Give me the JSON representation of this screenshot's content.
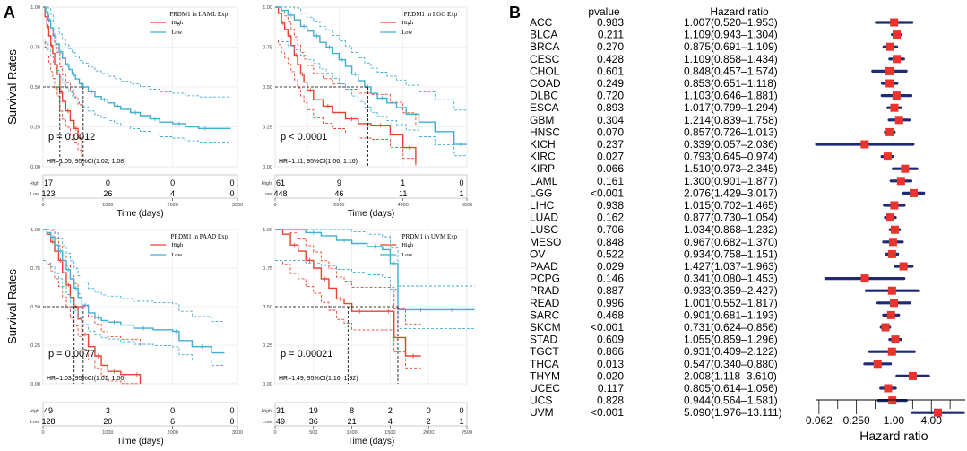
{
  "panel_labels": [
    "A",
    "B"
  ],
  "chart_data": [
    {
      "type": "line",
      "subtype": "kaplan-meier",
      "title": "PRDM1 in LAML Exp",
      "ylabel": "Survival Rates",
      "xlabel": "Time (days)",
      "xlim": [
        0,
        3000
      ],
      "ylim": [
        0,
        1
      ],
      "xticks": [
        0,
        1000,
        2000,
        3000
      ],
      "yticks": [
        "0.00",
        "0.25",
        "0.50",
        "0.75",
        "1.00"
      ],
      "legend": [
        "High",
        "Low"
      ],
      "colors": {
        "High": "#e8442f",
        "Low": "#42aed1"
      },
      "pvalue_text": "p = 0.0012",
      "hr_text": "HR=1.05, 95%CI(1.02, 1.08)",
      "median": {
        "High": 260,
        "Low": 620
      },
      "series": [
        {
          "name": "High",
          "x": [
            0,
            30,
            60,
            90,
            120,
            150,
            180,
            220,
            260,
            300,
            350,
            420,
            480,
            540,
            600
          ],
          "y": [
            1,
            0.94,
            0.88,
            0.82,
            0.76,
            0.71,
            0.64,
            0.58,
            0.47,
            0.41,
            0.35,
            0.29,
            0.24,
            0.18,
            0.06
          ]
        },
        {
          "name": "Low",
          "x": [
            0,
            40,
            80,
            120,
            160,
            200,
            250,
            300,
            350,
            400,
            450,
            500,
            560,
            620,
            700,
            800,
            900,
            1000,
            1100,
            1200,
            1350,
            1500,
            1650,
            1800,
            2000,
            2200,
            2400,
            2600,
            2900
          ],
          "y": [
            1,
            0.97,
            0.92,
            0.87,
            0.82,
            0.77,
            0.72,
            0.68,
            0.64,
            0.61,
            0.58,
            0.55,
            0.52,
            0.5,
            0.47,
            0.44,
            0.42,
            0.4,
            0.38,
            0.36,
            0.34,
            0.32,
            0.3,
            0.28,
            0.27,
            0.25,
            0.24,
            0.24,
            0.24
          ]
        }
      ],
      "risk_table": {
        "rows": [
          "High",
          "Low"
        ],
        "values": [
          [
            "17",
            "0",
            "0",
            "0"
          ],
          [
            "123",
            "26",
            "4",
            "0"
          ]
        ]
      }
    },
    {
      "type": "line",
      "subtype": "kaplan-meier",
      "title": "PRDM1 in LGG Exp",
      "ylabel": "",
      "xlabel": "Time (days)",
      "xlim": [
        0,
        6000
      ],
      "ylim": [
        0,
        1
      ],
      "xticks": [
        0,
        2000,
        4000,
        6000
      ],
      "yticks": [
        "0.00",
        "0.25",
        "0.50",
        "0.75",
        "1.00"
      ],
      "legend": [
        "High",
        "Low"
      ],
      "colors": {
        "High": "#e8442f",
        "Low": "#42aed1"
      },
      "pvalue_text": "p < 0.0001",
      "hr_text": "HR=1.11, 95%CI(1.06, 1.16)",
      "median": {
        "High": 1000,
        "Low": 2900
      },
      "series": [
        {
          "name": "High",
          "x": [
            0,
            100,
            200,
            300,
            400,
            500,
            600,
            700,
            800,
            900,
            1000,
            1200,
            1500,
            1800,
            2200,
            2600,
            3000,
            3600,
            4000,
            4400
          ],
          "y": [
            1,
            0.96,
            0.9,
            0.86,
            0.82,
            0.76,
            0.7,
            0.64,
            0.58,
            0.53,
            0.48,
            0.42,
            0.38,
            0.34,
            0.3,
            0.27,
            0.26,
            0.2,
            0.12,
            0.02
          ]
        },
        {
          "name": "Low",
          "x": [
            0,
            200,
            400,
            600,
            800,
            1000,
            1200,
            1400,
            1600,
            1800,
            2000,
            2200,
            2400,
            2600,
            2800,
            3000,
            3200,
            3500,
            3800,
            4100,
            4500,
            5000,
            5600,
            6000
          ],
          "y": [
            1,
            0.98,
            0.95,
            0.92,
            0.88,
            0.85,
            0.82,
            0.78,
            0.75,
            0.71,
            0.67,
            0.63,
            0.58,
            0.54,
            0.5,
            0.46,
            0.43,
            0.4,
            0.37,
            0.33,
            0.28,
            0.22,
            0.14,
            0.14
          ]
        }
      ],
      "risk_table": {
        "rows": [
          "High",
          "Low"
        ],
        "values": [
          [
            "61",
            "9",
            "1",
            "0"
          ],
          [
            "448",
            "46",
            "11",
            "1"
          ]
        ]
      }
    },
    {
      "type": "line",
      "subtype": "kaplan-meier",
      "title": "PRDM1 in PAAD Exp",
      "ylabel": "Survival Rates",
      "xlabel": "Time (days)",
      "xlim": [
        0,
        3000
      ],
      "ylim": [
        0,
        1
      ],
      "xticks": [
        0,
        1000,
        2000,
        3000
      ],
      "yticks": [
        "0.00",
        "0.25",
        "0.50",
        "0.75",
        "1.00"
      ],
      "legend": [
        "High",
        "Low"
      ],
      "colors": {
        "High": "#e8442f",
        "Low": "#42aed1"
      },
      "pvalue_text": "p = 0.0077",
      "hr_text": "HR=1.03, 95%CI(1.01, 1.06)",
      "median": {
        "High": 480,
        "Low": 620
      },
      "series": [
        {
          "name": "High",
          "x": [
            0,
            60,
            120,
            180,
            240,
            300,
            360,
            420,
            480,
            540,
            600,
            700,
            800,
            900,
            1000,
            1200,
            1400,
            1500
          ],
          "y": [
            1,
            0.97,
            0.92,
            0.86,
            0.8,
            0.72,
            0.64,
            0.56,
            0.5,
            0.42,
            0.32,
            0.24,
            0.18,
            0.12,
            0.08,
            0.06,
            0.06,
            0
          ]
        },
        {
          "name": "Low",
          "x": [
            0,
            60,
            120,
            180,
            240,
            300,
            360,
            420,
            480,
            540,
            600,
            700,
            800,
            900,
            1000,
            1200,
            1400,
            1700,
            2000,
            2100,
            2300,
            2600,
            2800
          ],
          "y": [
            1,
            0.98,
            0.95,
            0.9,
            0.86,
            0.8,
            0.74,
            0.68,
            0.62,
            0.56,
            0.51,
            0.46,
            0.43,
            0.41,
            0.4,
            0.38,
            0.36,
            0.35,
            0.34,
            0.28,
            0.24,
            0.2,
            0.2
          ]
        }
      ],
      "risk_table": {
        "rows": [
          "High",
          "Low"
        ],
        "values": [
          [
            "49",
            "3",
            "0",
            "0"
          ],
          [
            "128",
            "20",
            "6",
            "0"
          ]
        ]
      }
    },
    {
      "type": "line",
      "subtype": "kaplan-meier",
      "title": "PRDM1 in UVM Exp",
      "ylabel": "",
      "xlabel": "Time (days)",
      "xlim": [
        0,
        2500
      ],
      "ylim": [
        0,
        1
      ],
      "xticks": [
        0,
        500,
        1000,
        1500,
        2000,
        2500
      ],
      "yticks": [
        "0.00",
        "0.25",
        "0.50",
        "0.75",
        "1.00"
      ],
      "legend": [
        "High",
        "Low"
      ],
      "colors": {
        "High": "#e8442f",
        "Low": "#42aed1"
      },
      "pvalue_text": "p = 0.00021",
      "hr_text": "HR=1.49, 95%CI(1.16, 1.92)",
      "median": {
        "High": 950,
        "Low": 1600
      },
      "series": [
        {
          "name": "High",
          "x": [
            0,
            100,
            200,
            300,
            400,
            500,
            600,
            700,
            800,
            900,
            1000,
            1200,
            1400,
            1550,
            1700,
            1900
          ],
          "y": [
            1,
            0.97,
            0.9,
            0.86,
            0.8,
            0.75,
            0.68,
            0.62,
            0.55,
            0.52,
            0.47,
            0.47,
            0.47,
            0.3,
            0.18,
            0.18
          ]
        },
        {
          "name": "Low",
          "x": [
            0,
            200,
            400,
            600,
            800,
            1000,
            1200,
            1400,
            1500,
            1600,
            1800,
            2000,
            2200,
            2400,
            2600
          ],
          "y": [
            1,
            1,
            0.98,
            0.96,
            0.93,
            0.91,
            0.89,
            0.87,
            0.78,
            0.48,
            0.48,
            0.48,
            0.48,
            0.48,
            0.48
          ]
        }
      ],
      "risk_table": {
        "rows": [
          "High",
          "Low"
        ],
        "values": [
          [
            "31",
            "19",
            "8",
            "2",
            "0",
            "0"
          ],
          [
            "49",
            "36",
            "21",
            "4",
            "2",
            "1"
          ]
        ]
      }
    },
    {
      "type": "forest",
      "title": "",
      "column_headers": [
        "pvalue",
        "Hazard ratio"
      ],
      "xlabel": "Hazard ratio",
      "xscale": "log2",
      "xlim": [
        0.055,
        14
      ],
      "xticks": [
        "0.062",
        "0.250",
        "1.00",
        "4.00"
      ],
      "xtick_values": [
        0.0625,
        0.25,
        1,
        4
      ],
      "reference": 1,
      "rows": [
        {
          "label": "ACC",
          "p": "0.983",
          "hr_text": "1.007(0.520–1.953)",
          "hr": 1.007,
          "lo": 0.52,
          "hi": 1.953
        },
        {
          "label": "BLCA",
          "p": "0.211",
          "hr_text": "1.109(0.943–1.304)",
          "hr": 1.109,
          "lo": 0.943,
          "hi": 1.304
        },
        {
          "label": "BRCA",
          "p": "0.270",
          "hr_text": "0.875(0.691–1.109)",
          "hr": 0.875,
          "lo": 0.691,
          "hi": 1.109
        },
        {
          "label": "CESC",
          "p": "0.428",
          "hr_text": "1.109(0.858–1.434)",
          "hr": 1.109,
          "lo": 0.858,
          "hi": 1.434
        },
        {
          "label": "CHOL",
          "p": "0.601",
          "hr_text": "0.848(0.457–1.574)",
          "hr": 0.848,
          "lo": 0.457,
          "hi": 1.574
        },
        {
          "label": "COAD",
          "p": "0.249",
          "hr_text": "0.853(0.651–1.118)",
          "hr": 0.853,
          "lo": 0.651,
          "hi": 1.118
        },
        {
          "label": "DLBC",
          "p": "0.720",
          "hr_text": "1.103(0.646–1.881)",
          "hr": 1.103,
          "lo": 0.646,
          "hi": 1.881
        },
        {
          "label": "ESCA",
          "p": "0.893",
          "hr_text": "1.017(0.799–1.294)",
          "hr": 1.017,
          "lo": 0.799,
          "hi": 1.294
        },
        {
          "label": "GBM",
          "p": "0.304",
          "hr_text": "1.214(0.839–1.758)",
          "hr": 1.214,
          "lo": 0.839,
          "hi": 1.758
        },
        {
          "label": "HNSC",
          "p": "0.070",
          "hr_text": "0.857(0.726–1.013)",
          "hr": 0.857,
          "lo": 0.726,
          "hi": 1.013
        },
        {
          "label": "KICH",
          "p": "0.237",
          "hr_text": "0.339(0.057–2.036)",
          "hr": 0.339,
          "lo": 0.057,
          "hi": 2.036
        },
        {
          "label": "KIRC",
          "p": "0.027",
          "hr_text": "0.793(0.645–0.974)",
          "hr": 0.793,
          "lo": 0.645,
          "hi": 0.974
        },
        {
          "label": "KIRP",
          "p": "0.066",
          "hr_text": "1.510(0.973–2.345)",
          "hr": 1.51,
          "lo": 0.973,
          "hi": 2.345
        },
        {
          "label": "LAML",
          "p": "0.161",
          "hr_text": "1.300(0.901–1.877)",
          "hr": 1.3,
          "lo": 0.901,
          "hi": 1.877
        },
        {
          "label": "LGG",
          "p": "<0.001",
          "hr_text": "2.076(1.429–3.017)",
          "hr": 2.076,
          "lo": 1.429,
          "hi": 3.017
        },
        {
          "label": "LIHC",
          "p": "0.938",
          "hr_text": "1.015(0.702–1.465)",
          "hr": 1.015,
          "lo": 0.702,
          "hi": 1.465
        },
        {
          "label": "LUAD",
          "p": "0.162",
          "hr_text": "0.877(0.730–1.054)",
          "hr": 0.877,
          "lo": 0.73,
          "hi": 1.054
        },
        {
          "label": "LUSC",
          "p": "0.706",
          "hr_text": "1.034(0.868–1.232)",
          "hr": 1.034,
          "lo": 0.868,
          "hi": 1.232
        },
        {
          "label": "MESO",
          "p": "0.848",
          "hr_text": "0.967(0.682–1.370)",
          "hr": 0.967,
          "lo": 0.682,
          "hi": 1.37
        },
        {
          "label": "OV",
          "p": "0.522",
          "hr_text": "0.934(0.758–1.151)",
          "hr": 0.934,
          "lo": 0.758,
          "hi": 1.151
        },
        {
          "label": "PAAD",
          "p": "0.029",
          "hr_text": "1.427(1.037–1.963)",
          "hr": 1.427,
          "lo": 1.037,
          "hi": 1.963
        },
        {
          "label": "PCPG",
          "p": "0.146",
          "hr_text": "0.341(0.080–1.453)",
          "hr": 0.341,
          "lo": 0.08,
          "hi": 1.453
        },
        {
          "label": "PRAD",
          "p": "0.887",
          "hr_text": "0.933(0.359–2.427)",
          "hr": 0.933,
          "lo": 0.359,
          "hi": 2.427
        },
        {
          "label": "READ",
          "p": "0.996",
          "hr_text": "1.001(0.552–1.817)",
          "hr": 1.001,
          "lo": 0.552,
          "hi": 1.817
        },
        {
          "label": "SARC",
          "p": "0.468",
          "hr_text": "0.901(0.681–1.193)",
          "hr": 0.901,
          "lo": 0.681,
          "hi": 1.193
        },
        {
          "label": "SKCM",
          "p": "<0.001",
          "hr_text": "0.731(0.624–0.856)",
          "hr": 0.731,
          "lo": 0.624,
          "hi": 0.856
        },
        {
          "label": "STAD",
          "p": "0.609",
          "hr_text": "1.055(0.859–1.296)",
          "hr": 1.055,
          "lo": 0.859,
          "hi": 1.296
        },
        {
          "label": "TGCT",
          "p": "0.866",
          "hr_text": "0.931(0.409–2.122)",
          "hr": 0.931,
          "lo": 0.409,
          "hi": 2.122
        },
        {
          "label": "THCA",
          "p": "0.013",
          "hr_text": "0.547(0.340–0.880)",
          "hr": 0.547,
          "lo": 0.34,
          "hi": 0.88
        },
        {
          "label": "THYM",
          "p": "0.020",
          "hr_text": "2.008(1.118–3.610)",
          "hr": 2.008,
          "lo": 1.118,
          "hi": 3.61
        },
        {
          "label": "UCEC",
          "p": "0.117",
          "hr_text": "0.805(0.614–1.056)",
          "hr": 0.805,
          "lo": 0.614,
          "hi": 1.056
        },
        {
          "label": "UCS",
          "p": "0.828",
          "hr_text": "0.944(0.564–1.581)",
          "hr": 0.944,
          "lo": 0.564,
          "hi": 1.581
        },
        {
          "label": "UVM",
          "p": "<0.001",
          "hr_text": "5.090(1.976–13.111)",
          "hr": 5.09,
          "lo": 1.976,
          "hi": 13.111
        }
      ]
    }
  ]
}
